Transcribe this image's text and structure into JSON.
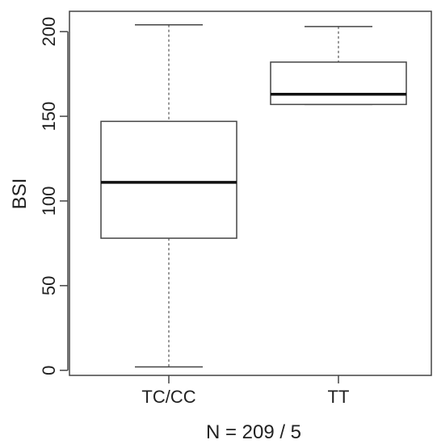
{
  "chart_data": {
    "type": "boxplot",
    "title": "",
    "xlabel": "N = 209 / 5",
    "ylabel": "BSI",
    "ylim": [
      -3,
      212
    ],
    "yticks": [
      0,
      50,
      100,
      150,
      200
    ],
    "grid": false,
    "categories": [
      "TC/CC",
      "TT"
    ],
    "boxes": [
      {
        "category": "TC/CC",
        "min": 2,
        "q1": 78,
        "median": 111,
        "q3": 147,
        "max": 204
      },
      {
        "category": "TT",
        "min": 157,
        "q1": 157,
        "median": 163,
        "q3": 182,
        "max": 203
      }
    ]
  }
}
